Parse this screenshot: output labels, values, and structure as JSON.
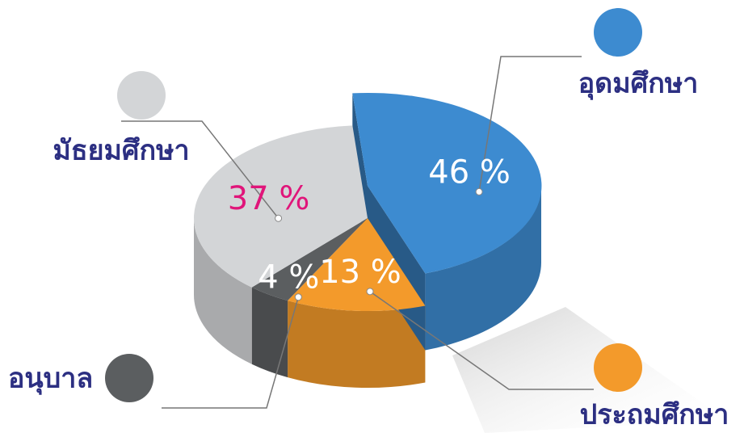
{
  "chart_data": {
    "type": "pie3d",
    "categories": [
      "อุดมศึกษา",
      "ประถมศึกษา",
      "อนุบาล",
      "มัธยมศึกษา"
    ],
    "values": [
      46,
      13,
      4,
      37
    ],
    "value_labels": [
      "46 %",
      "13 %",
      "4 %",
      "37 %"
    ],
    "colors": [
      "#3d8bd0",
      "#f39a2b",
      "#5b5e60",
      "#d3d5d7"
    ],
    "value_label_colors": [
      "#ffffff",
      "#ffffff",
      "#ffffff",
      "#e0157a"
    ]
  }
}
